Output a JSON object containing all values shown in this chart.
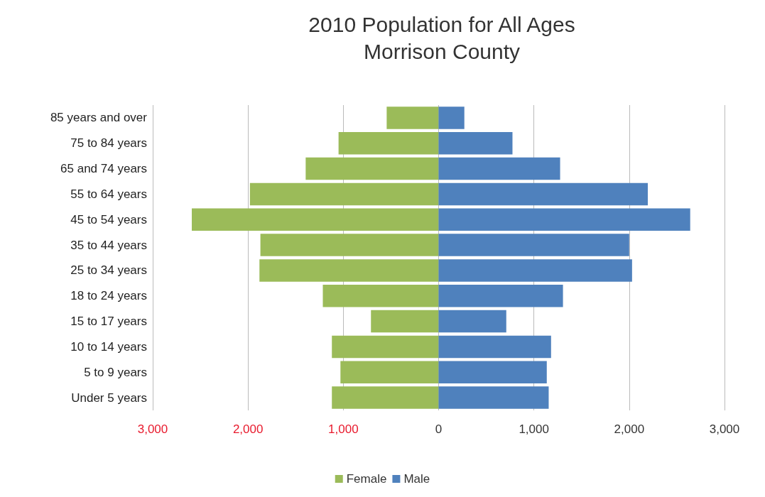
{
  "chart_data": {
    "type": "bar",
    "orientation": "horizontal",
    "title": "2010 Population for All Ages",
    "subtitle": "Morrison County",
    "categories": [
      "85 years and over",
      "75 to 84 years",
      "65 and 74 years",
      "55 to 64 years",
      "45 to 54 years",
      "35 to 44 years",
      "25 to 34 years",
      "18 to 24 years",
      "15 to 17 years",
      "10 to 14 years",
      "5 to 9 years",
      "Under 5 years"
    ],
    "series": [
      {
        "name": "Female",
        "color": "#9bbb59",
        "values": [
          -545,
          -1050,
          -1395,
          -1980,
          -2590,
          -1870,
          -1880,
          -1215,
          -710,
          -1120,
          -1030,
          -1120
        ]
      },
      {
        "name": "Male",
        "color": "#4f81bd",
        "values": [
          270,
          775,
          1275,
          2195,
          2640,
          2000,
          2030,
          1305,
          710,
          1180,
          1135,
          1155
        ]
      }
    ],
    "xlim": [
      -3000,
      3000
    ],
    "xticks": [
      {
        "value": -3000,
        "label": "3,000"
      },
      {
        "value": -2000,
        "label": "2,000"
      },
      {
        "value": -1000,
        "label": "1,000"
      },
      0,
      {
        "value": 1000,
        "label": "1,000"
      },
      {
        "value": 2000,
        "label": "2,000"
      },
      {
        "value": 3000,
        "label": "3,000"
      }
    ],
    "grid": "x",
    "legend": "bottom",
    "stacked": true
  }
}
